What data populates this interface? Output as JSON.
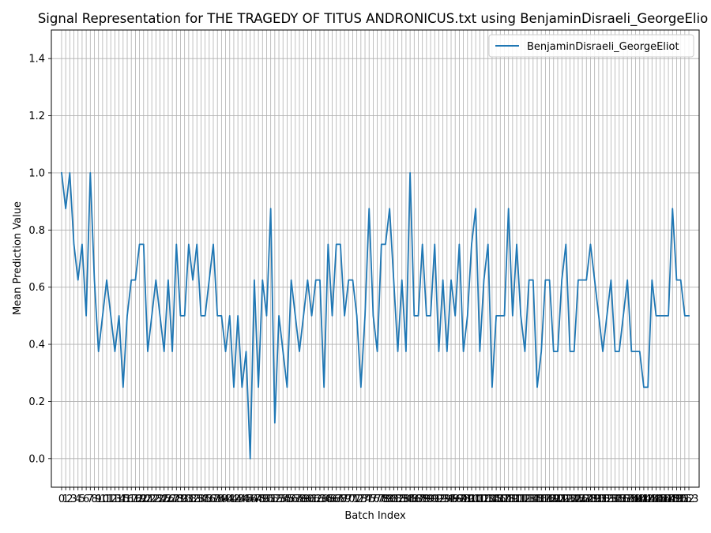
{
  "chart_data": {
    "type": "line",
    "title": "Signal Representation for THE TRAGEDY OF TITUS ANDRONICUS.txt using BenjaminDisraeli_GeorgeElio",
    "xlabel": "Batch Index",
    "ylabel": "Mean Prediction Value",
    "ylim": [
      -0.1,
      1.5
    ],
    "yticks": [
      "0.0",
      "0.2",
      "0.4",
      "0.6",
      "0.8",
      "1.0",
      "1.2",
      "1.4"
    ],
    "xlim": [
      -2.5,
      155.5
    ],
    "x": [
      0,
      1,
      2,
      3,
      4,
      5,
      6,
      7,
      8,
      9,
      10,
      11,
      12,
      13,
      14,
      15,
      16,
      17,
      18,
      19,
      20,
      21,
      22,
      23,
      24,
      25,
      26,
      27,
      28,
      29,
      30,
      31,
      32,
      33,
      34,
      35,
      36,
      37,
      38,
      39,
      40,
      41,
      42,
      43,
      44,
      45,
      46,
      47,
      48,
      49,
      50,
      51,
      52,
      53,
      54,
      55,
      56,
      57,
      58,
      59,
      60,
      61,
      62,
      63,
      64,
      65,
      66,
      67,
      68,
      69,
      70,
      71,
      72,
      73,
      74,
      75,
      76,
      77,
      78,
      79,
      80,
      81,
      82,
      83,
      84,
      85,
      86,
      87,
      88,
      89,
      90,
      91,
      92,
      93,
      94,
      95,
      96,
      97,
      98,
      99,
      100,
      101,
      102,
      103,
      104,
      105,
      106,
      107,
      108,
      109,
      110,
      111,
      112,
      113,
      114,
      115,
      116,
      117,
      118,
      119,
      120,
      121,
      122,
      123,
      124,
      125,
      126,
      127,
      128,
      129,
      130,
      131,
      132,
      133,
      134,
      135,
      136,
      137,
      138,
      139,
      140,
      141,
      142,
      143,
      144,
      145,
      146,
      147,
      148,
      149,
      150,
      151,
      152,
      153
    ],
    "grid": true,
    "legend": "top-right",
    "series": [
      {
        "name": "BenjaminDisraeli_GeorgeEliot",
        "color": "#1f77b4",
        "values": [
          1.0,
          0.875,
          1.0,
          0.75,
          0.625,
          0.75,
          0.5,
          1.0,
          0.625,
          0.375,
          0.5,
          0.625,
          0.5,
          0.375,
          0.5,
          0.25,
          0.5,
          0.625,
          0.625,
          0.75,
          0.75,
          0.375,
          0.5,
          0.625,
          0.5,
          0.375,
          0.625,
          0.375,
          0.75,
          0.5,
          0.5,
          0.75,
          0.625,
          0.75,
          0.5,
          0.5,
          0.625,
          0.75,
          0.5,
          0.5,
          0.375,
          0.5,
          0.25,
          0.5,
          0.25,
          0.375,
          0.0,
          0.625,
          0.25,
          0.625,
          0.5,
          0.875,
          0.125,
          0.5,
          0.375,
          0.25,
          0.625,
          0.5,
          0.375,
          0.5,
          0.625,
          0.5,
          0.625,
          0.625,
          0.25,
          0.75,
          0.5,
          0.75,
          0.75,
          0.5,
          0.625,
          0.625,
          0.5,
          0.25,
          0.5,
          0.875,
          0.5,
          0.375,
          0.75,
          0.75,
          0.875,
          0.625,
          0.375,
          0.625,
          0.375,
          1.0,
          0.5,
          0.5,
          0.75,
          0.5,
          0.5,
          0.75,
          0.375,
          0.625,
          0.375,
          0.625,
          0.5,
          0.75,
          0.375,
          0.5,
          0.75,
          0.875,
          0.375,
          0.625,
          0.75,
          0.25,
          0.5,
          0.5,
          0.5,
          0.875,
          0.5,
          0.75,
          0.5,
          0.375,
          0.625,
          0.625,
          0.25,
          0.375,
          0.625,
          0.625,
          0.375,
          0.375,
          0.625,
          0.75,
          0.375,
          0.375,
          0.625,
          0.625,
          0.625,
          0.75,
          0.625,
          0.5,
          0.375,
          0.5,
          0.625,
          0.375,
          0.375,
          0.5,
          0.625,
          0.375,
          0.375,
          0.375,
          0.25,
          0.25,
          0.625,
          0.5,
          0.5,
          0.5,
          0.5,
          0.875,
          0.625,
          0.625,
          0.5,
          0.5
        ]
      }
    ]
  }
}
